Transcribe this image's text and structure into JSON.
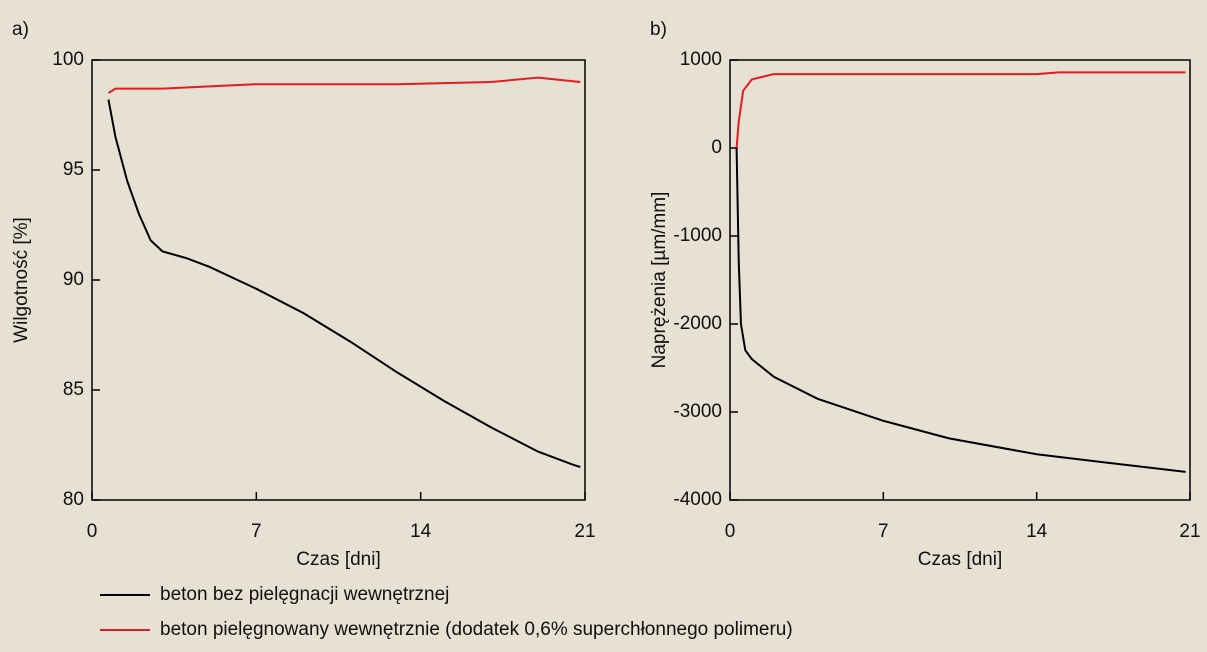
{
  "chart_data": [
    {
      "type": "line",
      "panel_label": "a)",
      "ylabel": "Wilgotność [%]",
      "xlabel": "Czas [dni]",
      "xlim": [
        0,
        21
      ],
      "xticks": [
        0,
        7,
        14,
        21
      ],
      "ylim": [
        80,
        100
      ],
      "yticks": [
        80,
        85,
        90,
        95,
        100
      ],
      "series": [
        {
          "name": "beton bez pielęgnacji wewnętrznej",
          "color": "#000000",
          "x": [
            0.7,
            1,
            1.5,
            2,
            2.5,
            3,
            4,
            5,
            7,
            9,
            11,
            13,
            15,
            17,
            19,
            20.5,
            20.8
          ],
          "values": [
            98.2,
            96.5,
            94.5,
            93,
            91.8,
            91.3,
            91,
            90.6,
            89.6,
            88.5,
            87.2,
            85.8,
            84.5,
            83.3,
            82.2,
            81.6,
            81.5
          ]
        },
        {
          "name": "beton pielęgnowany wewnętrznie (dodatek 0,6% superchłonnego polimeru)",
          "color": "#e31b23",
          "x": [
            0.7,
            1,
            3,
            5,
            7,
            9,
            13,
            17,
            19,
            20.8
          ],
          "values": [
            98.5,
            98.7,
            98.7,
            98.8,
            98.9,
            98.9,
            98.9,
            99,
            99.2,
            99
          ]
        }
      ]
    },
    {
      "type": "line",
      "panel_label": "b)",
      "ylabel": "Naprężenia [µm/mm]",
      "xlabel": "Czas [dni]",
      "xlim": [
        0,
        21
      ],
      "xticks": [
        0,
        7,
        14,
        21
      ],
      "ylim": [
        -4000,
        1000
      ],
      "yticks": [
        -4000,
        -3000,
        -2000,
        -1000,
        0,
        1000
      ],
      "series": [
        {
          "color": "#000000",
          "x": [
            0.3,
            0.4,
            0.5,
            0.7,
            1,
            2,
            4,
            7,
            10,
            14,
            17,
            20.8
          ],
          "values": [
            0,
            -1300,
            -2000,
            -2300,
            -2400,
            -2600,
            -2850,
            -3100,
            -3300,
            -3480,
            -3570,
            -3680
          ]
        },
        {
          "color": "#e31b23",
          "x": [
            0.3,
            0.4,
            0.6,
            1,
            2,
            7,
            14,
            15,
            20.8
          ],
          "values": [
            0,
            300,
            650,
            780,
            840,
            840,
            840,
            860,
            860
          ]
        }
      ]
    }
  ]
}
